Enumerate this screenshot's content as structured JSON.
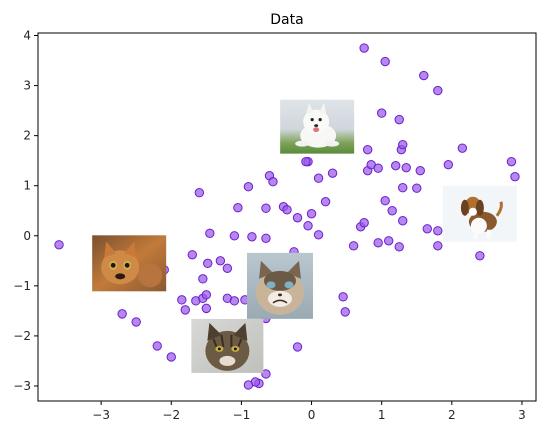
{
  "chart_data": {
    "type": "scatter",
    "title": "Data",
    "xlabel": "",
    "ylabel": "",
    "xlim": [
      -3.9,
      3.2
    ],
    "ylim": [
      -3.3,
      4.05
    ],
    "xticks": [
      -3,
      -2,
      -1,
      0,
      1,
      2,
      3
    ],
    "yticks": [
      -3,
      -2,
      -1,
      0,
      1,
      2,
      3,
      4
    ],
    "grid": false,
    "legend": "none",
    "colors": {
      "fill": "#9b59e8",
      "edge": "#6a1fcf"
    },
    "points": [
      {
        "x": -3.6,
        "y": -0.18
      },
      {
        "x": -2.7,
        "y": -1.56
      },
      {
        "x": -2.5,
        "y": -1.72
      },
      {
        "x": -2.4,
        "y": -0.62
      },
      {
        "x": -2.1,
        "y": -0.68
      },
      {
        "x": -2.2,
        "y": -2.2
      },
      {
        "x": -2.0,
        "y": -2.42
      },
      {
        "x": -1.85,
        "y": -1.28
      },
      {
        "x": -1.8,
        "y": -1.48
      },
      {
        "x": -1.65,
        "y": -1.3
      },
      {
        "x": -1.55,
        "y": -1.25
      },
      {
        "x": -1.5,
        "y": -1.45
      },
      {
        "x": -1.5,
        "y": -1.18
      },
      {
        "x": -1.55,
        "y": -0.86
      },
      {
        "x": -1.48,
        "y": -0.55
      },
      {
        "x": -1.45,
        "y": 0.05
      },
      {
        "x": -1.6,
        "y": 0.86
      },
      {
        "x": -1.7,
        "y": -0.38
      },
      {
        "x": -1.3,
        "y": -0.5
      },
      {
        "x": -1.2,
        "y": -0.65
      },
      {
        "x": -1.2,
        "y": -1.25
      },
      {
        "x": -1.1,
        "y": -1.3
      },
      {
        "x": -0.95,
        "y": -1.28
      },
      {
        "x": -0.85,
        "y": -1.2
      },
      {
        "x": -1.1,
        "y": 0.0
      },
      {
        "x": -1.05,
        "y": 0.56
      },
      {
        "x": -0.9,
        "y": 0.98
      },
      {
        "x": -0.85,
        "y": -0.02
      },
      {
        "x": -0.65,
        "y": -0.05
      },
      {
        "x": -0.65,
        "y": 0.55
      },
      {
        "x": -0.6,
        "y": 1.2
      },
      {
        "x": -0.55,
        "y": 1.08
      },
      {
        "x": -0.4,
        "y": 0.58
      },
      {
        "x": -0.35,
        "y": 0.52
      },
      {
        "x": -0.25,
        "y": -0.32
      },
      {
        "x": -0.2,
        "y": 0.36
      },
      {
        "x": -0.2,
        "y": -2.22
      },
      {
        "x": -0.65,
        "y": -1.65
      },
      {
        "x": -0.75,
        "y": -2.95
      },
      {
        "x": -0.8,
        "y": -2.92
      },
      {
        "x": -0.9,
        "y": -2.98
      },
      {
        "x": -0.65,
        "y": -2.76
      },
      {
        "x": -0.05,
        "y": 0.2
      },
      {
        "x": 0.0,
        "y": 0.44
      },
      {
        "x": 0.1,
        "y": 0.02
      },
      {
        "x": 0.1,
        "y": 1.15
      },
      {
        "x": 0.2,
        "y": 0.68
      },
      {
        "x": 0.3,
        "y": 1.25
      },
      {
        "x": -0.05,
        "y": 1.48
      },
      {
        "x": -0.08,
        "y": 1.48
      },
      {
        "x": 0.45,
        "y": -1.22
      },
      {
        "x": 0.48,
        "y": -1.52
      },
      {
        "x": 0.6,
        "y": -0.2
      },
      {
        "x": 0.7,
        "y": 0.18
      },
      {
        "x": 0.75,
        "y": 0.26
      },
      {
        "x": 0.75,
        "y": 3.75
      },
      {
        "x": 0.8,
        "y": 1.72
      },
      {
        "x": 0.8,
        "y": 1.3
      },
      {
        "x": 0.85,
        "y": 1.42
      },
      {
        "x": 0.95,
        "y": 1.35
      },
      {
        "x": 0.95,
        "y": -0.14
      },
      {
        "x": 1.0,
        "y": 2.45
      },
      {
        "x": 1.05,
        "y": 0.7
      },
      {
        "x": 1.05,
        "y": 3.48
      },
      {
        "x": 1.1,
        "y": -0.1
      },
      {
        "x": 1.15,
        "y": 0.5
      },
      {
        "x": 1.2,
        "y": 1.4
      },
      {
        "x": 1.25,
        "y": -0.22
      },
      {
        "x": 1.25,
        "y": 2.32
      },
      {
        "x": 1.28,
        "y": 1.72
      },
      {
        "x": 1.3,
        "y": 1.82
      },
      {
        "x": 1.3,
        "y": 0.96
      },
      {
        "x": 1.3,
        "y": 0.3
      },
      {
        "x": 1.35,
        "y": 1.36
      },
      {
        "x": 1.5,
        "y": 0.95
      },
      {
        "x": 1.55,
        "y": 1.3
      },
      {
        "x": 1.6,
        "y": 3.2
      },
      {
        "x": 1.65,
        "y": 0.14
      },
      {
        "x": 1.8,
        "y": 2.9
      },
      {
        "x": 1.8,
        "y": 0.1
      },
      {
        "x": 1.8,
        "y": -0.2
      },
      {
        "x": 1.95,
        "y": 1.42
      },
      {
        "x": 2.15,
        "y": 1.75
      },
      {
        "x": 2.4,
        "y": -0.4
      },
      {
        "x": 2.85,
        "y": 1.48
      },
      {
        "x": 2.9,
        "y": 1.18
      }
    ],
    "image_annotations": [
      {
        "name": "husky-puppy-photo",
        "x": 0.08,
        "y": 2.18
      },
      {
        "name": "beagle-photo",
        "x": 2.4,
        "y": 0.44
      },
      {
        "name": "orange-cat-photo",
        "x": -2.6,
        "y": -0.55
      },
      {
        "name": "grumpy-cat-photo",
        "x": -0.45,
        "y": -1.0
      },
      {
        "name": "tabby-cat-photo",
        "x": -1.2,
        "y": -2.2
      }
    ]
  }
}
